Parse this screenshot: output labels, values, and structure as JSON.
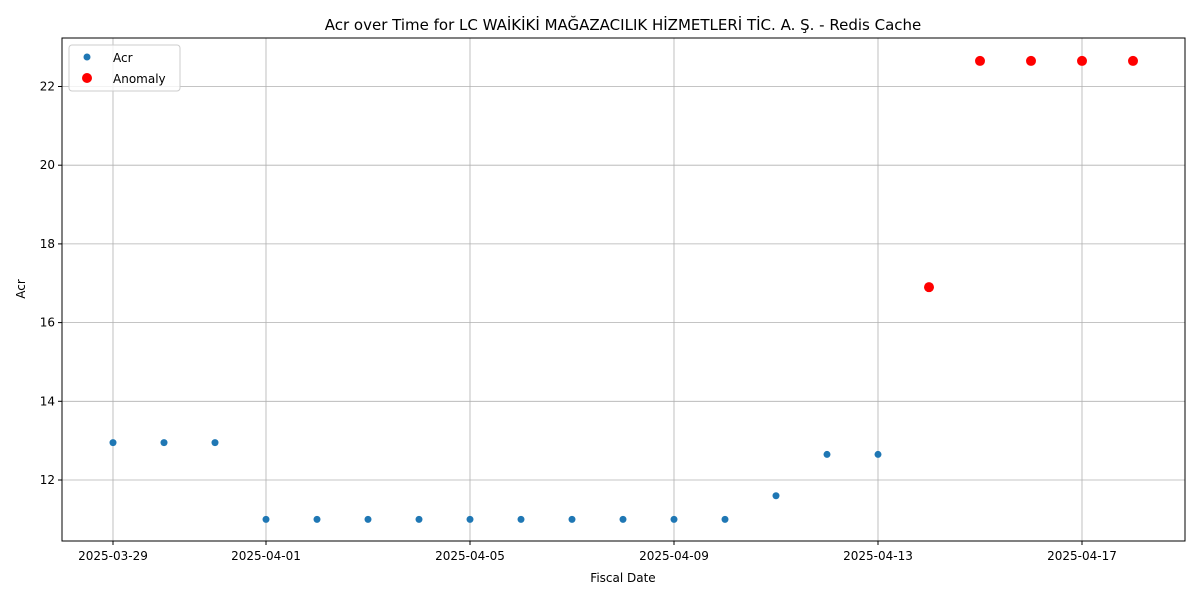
{
  "chart_data": {
    "type": "scatter",
    "title": "Acr over Time for LC WAİKİKİ MAĞAZACILIK HİZMETLERİ TİC. A. Ş. - Redis Cache",
    "xlabel": "Fiscal Date",
    "ylabel": "Acr",
    "x_ticks": [
      "2025-03-29",
      "2025-04-01",
      "2025-04-05",
      "2025-04-09",
      "2025-04-13",
      "2025-04-17"
    ],
    "y_ticks": [
      12,
      14,
      16,
      18,
      20,
      22
    ],
    "xlim": [
      "2025-03-28",
      "2025-04-19"
    ],
    "ylim": [
      10.5,
      23.25
    ],
    "grid": true,
    "legend_position": "upper left",
    "series": [
      {
        "name": "Acr",
        "color": "#1f77b4",
        "marker_size": "small",
        "points": [
          {
            "x": "2025-03-29",
            "y": 12.95
          },
          {
            "x": "2025-03-30",
            "y": 12.95
          },
          {
            "x": "2025-03-31",
            "y": 12.95
          },
          {
            "x": "2025-04-01",
            "y": 11.0
          },
          {
            "x": "2025-04-02",
            "y": 11.0
          },
          {
            "x": "2025-04-03",
            "y": 11.0
          },
          {
            "x": "2025-04-04",
            "y": 11.0
          },
          {
            "x": "2025-04-05",
            "y": 11.0
          },
          {
            "x": "2025-04-06",
            "y": 11.0
          },
          {
            "x": "2025-04-07",
            "y": 11.0
          },
          {
            "x": "2025-04-08",
            "y": 11.0
          },
          {
            "x": "2025-04-09",
            "y": 11.0
          },
          {
            "x": "2025-04-10",
            "y": 11.0
          },
          {
            "x": "2025-04-11",
            "y": 11.6
          },
          {
            "x": "2025-04-12",
            "y": 12.65
          },
          {
            "x": "2025-04-13",
            "y": 12.65
          }
        ]
      },
      {
        "name": "Anomaly",
        "color": "#ff0000",
        "marker_size": "large",
        "points": [
          {
            "x": "2025-04-14",
            "y": 16.9
          },
          {
            "x": "2025-04-15",
            "y": 22.65
          },
          {
            "x": "2025-04-16",
            "y": 22.65
          },
          {
            "x": "2025-04-17",
            "y": 22.65
          },
          {
            "x": "2025-04-18",
            "y": 22.65
          }
        ]
      }
    ]
  }
}
